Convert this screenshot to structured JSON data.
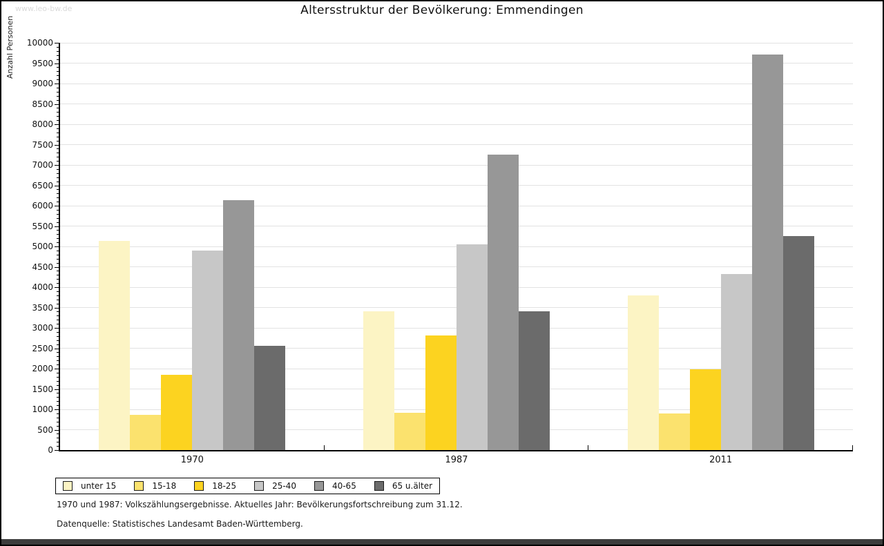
{
  "page": {
    "watermark": "www.leo-bw.de",
    "footnote_line1": "1970 und 1987: Volkszählungsergebnisse. Aktuelles Jahr: Bevölkerungsfortschreibung zum 31.12.",
    "footnote_line2": "Datenquelle: Statistisches Landesamt Baden-Württemberg."
  },
  "chart_data": {
    "type": "bar",
    "title": "Altersstruktur der Bevölkerung: Emmendingen",
    "xlabel": "",
    "ylabel": "Anzahl Personen",
    "categories": [
      "1970",
      "1987",
      "2011"
    ],
    "series": [
      {
        "name": "unter 15",
        "color": "#fcf4c4",
        "values": [
          5130,
          3410,
          3800
        ]
      },
      {
        "name": "15-18",
        "color": "#fbe26e",
        "values": [
          870,
          920,
          900
        ]
      },
      {
        "name": "18-25",
        "color": "#fcd320",
        "values": [
          1850,
          2810,
          1980
        ]
      },
      {
        "name": "25-40",
        "color": "#c7c7c7",
        "values": [
          4900,
          5050,
          4320
        ]
      },
      {
        "name": "40-65",
        "color": "#979797",
        "values": [
          6140,
          7250,
          9710
        ]
      },
      {
        "name": "65 u.älter",
        "color": "#6b6b6b",
        "values": [
          2560,
          3400,
          5260
        ]
      }
    ],
    "ylim": [
      0,
      10000
    ],
    "ytick_step": 500,
    "y_minor_step": 100,
    "grid": "horizontal",
    "legend_position": "bottom-left",
    "axis_color": "#000000",
    "gridline_color": "#e2e2e2"
  }
}
